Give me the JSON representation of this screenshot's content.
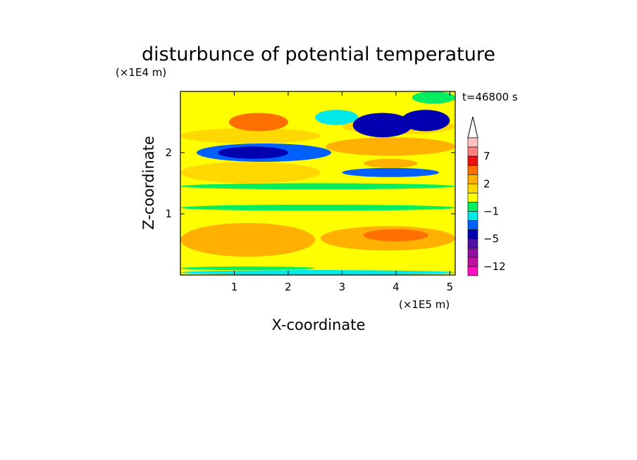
{
  "chart_data": {
    "type": "heatmap",
    "title": "disturbunce of potential temperature",
    "time_label": "t=46800 s",
    "xlabel": "X-coordinate",
    "ylabel": "Z-coordinate",
    "x_unit": "(×1E5 m)",
    "y_unit": "(×1E4 m)",
    "xlim": [
      0,
      5.1
    ],
    "ylim": [
      0,
      3.0
    ],
    "x_ticks": [
      1,
      2,
      3,
      4,
      5
    ],
    "y_ticks": [
      1,
      2
    ],
    "colorbar": {
      "tick_labels": [
        "7",
        "2",
        "−1",
        "−5",
        "−12"
      ],
      "levels_top_to_bottom": [
        12,
        9,
        7,
        5,
        3,
        2,
        1,
        0,
        -1,
        -2,
        -3,
        -5,
        -7,
        -9,
        -12
      ],
      "colors_top_to_bottom": [
        "#ffc0c0",
        "#ff8080",
        "#ee1010",
        "#ff7000",
        "#ffb000",
        "#ffd800",
        "#ffff00",
        "#00ee60",
        "#00e8e8",
        "#0060ff",
        "#0000b0",
        "#5010a8",
        "#9010a0",
        "#c010a0",
        "#ff10c0"
      ],
      "extend_top": true
    },
    "field": {
      "background_value": 0.5,
      "features": [
        {
          "x": [
            0.0,
            5.1
          ],
          "z": [
            0.0,
            0.08
          ],
          "value": -1
        },
        {
          "x": [
            0.0,
            2.5
          ],
          "z": [
            0.08,
            0.14
          ],
          "value": 0
        },
        {
          "x": [
            0.0,
            2.5
          ],
          "z": [
            0.3,
            0.85
          ],
          "value": 2.5
        },
        {
          "x": [
            2.6,
            5.1
          ],
          "z": [
            0.4,
            0.8
          ],
          "value": 2.5
        },
        {
          "x": [
            3.4,
            4.6
          ],
          "z": [
            0.55,
            0.75
          ],
          "value": 4
        },
        {
          "x": [
            0.0,
            5.1
          ],
          "z": [
            1.05,
            1.15
          ],
          "value": -0.5
        },
        {
          "x": [
            0.0,
            5.1
          ],
          "z": [
            1.4,
            1.5
          ],
          "value": -0.5
        },
        {
          "x": [
            0.0,
            2.6
          ],
          "z": [
            1.5,
            1.85
          ],
          "value": 2
        },
        {
          "x": [
            0.3,
            2.8
          ],
          "z": [
            1.85,
            2.15
          ],
          "value": -2
        },
        {
          "x": [
            0.7,
            2.0
          ],
          "z": [
            1.9,
            2.1
          ],
          "value": -3
        },
        {
          "x": [
            2.7,
            5.1
          ],
          "z": [
            1.95,
            2.25
          ],
          "value": 3
        },
        {
          "x": [
            3.0,
            4.8
          ],
          "z": [
            1.6,
            1.75
          ],
          "value": -2
        },
        {
          "x": [
            3.4,
            4.4
          ],
          "z": [
            1.75,
            1.9
          ],
          "value": 3
        },
        {
          "x": [
            0.0,
            2.6
          ],
          "z": [
            2.15,
            2.4
          ],
          "value": 2
        },
        {
          "x": [
            0.9,
            2.0
          ],
          "z": [
            2.35,
            2.65
          ],
          "value": 4
        },
        {
          "x": [
            1.0,
            1.5
          ],
          "z": [
            2.45,
            2.6
          ],
          "value": 5
        },
        {
          "x": [
            2.5,
            3.3
          ],
          "z": [
            2.45,
            2.7
          ],
          "value": -1
        },
        {
          "x": [
            3.0,
            5.1
          ],
          "z": [
            2.3,
            2.55
          ],
          "value": 2
        },
        {
          "x": [
            3.2,
            4.3
          ],
          "z": [
            2.25,
            2.65
          ],
          "value": -3
        },
        {
          "x": [
            4.1,
            5.0
          ],
          "z": [
            2.35,
            2.7
          ],
          "value": -3
        },
        {
          "x": [
            3.7,
            4.6
          ],
          "z": [
            2.75,
            2.9
          ],
          "value": 3
        },
        {
          "x": [
            0.0,
            5.1
          ],
          "z": [
            2.7,
            3.0
          ],
          "value": 0.5
        },
        {
          "x": [
            4.3,
            5.1
          ],
          "z": [
            2.8,
            3.0
          ],
          "value": -0.5
        }
      ]
    }
  }
}
